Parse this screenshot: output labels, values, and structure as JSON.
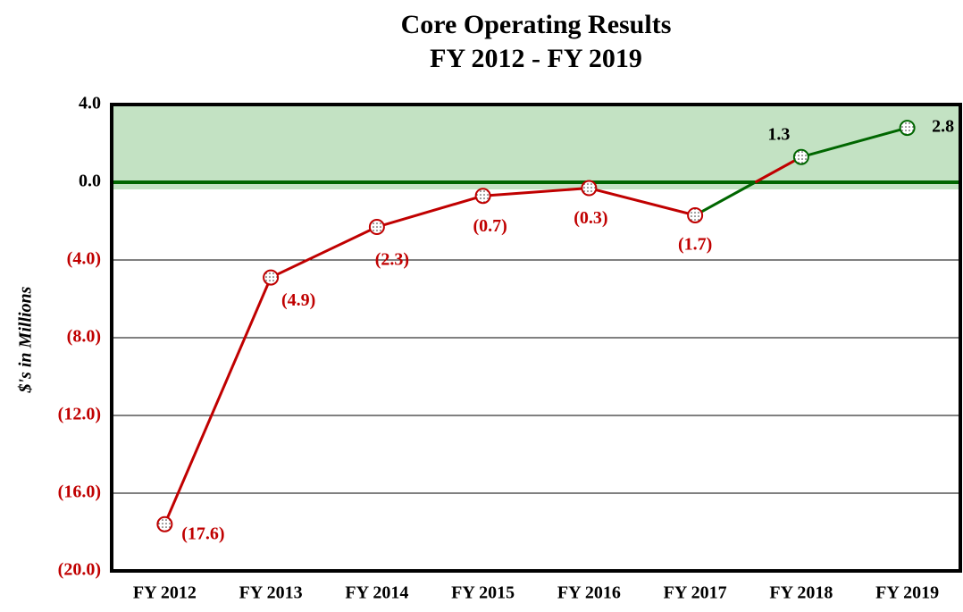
{
  "chart_data": {
    "type": "line",
    "title": [
      "Core Operating Results",
      "FY 2012 - FY 2019"
    ],
    "y_label": "$'s in Millions",
    "categories": [
      "FY 2012",
      "FY 2013",
      "FY 2014",
      "FY 2015",
      "FY 2016",
      "FY 2017",
      "FY 2018",
      "FY 2019"
    ],
    "values": [
      -17.6,
      -4.9,
      -2.3,
      -0.7,
      -0.3,
      -1.7,
      1.3,
      2.8
    ],
    "value_labels": [
      "(17.6)",
      "(4.9)",
      "(2.3)",
      "(0.7)",
      "(0.3)",
      "(1.7)",
      "1.3",
      "2.8"
    ],
    "negative_color": "#c00000",
    "positive_color": "#006600",
    "positive_band_color": "#c3e2c3",
    "ylim": [
      -20,
      4
    ],
    "yticks": [
      {
        "value": 4,
        "label": "4.0"
      },
      {
        "value": 0,
        "label": "0.0"
      },
      {
        "value": -4,
        "label": "(4.0)"
      },
      {
        "value": -8,
        "label": "(8.0)"
      },
      {
        "value": -12,
        "label": "(12.0)"
      },
      {
        "value": -16,
        "label": "(16.0)"
      },
      {
        "value": -20,
        "label": "(20.0)"
      }
    ],
    "grid": true
  }
}
